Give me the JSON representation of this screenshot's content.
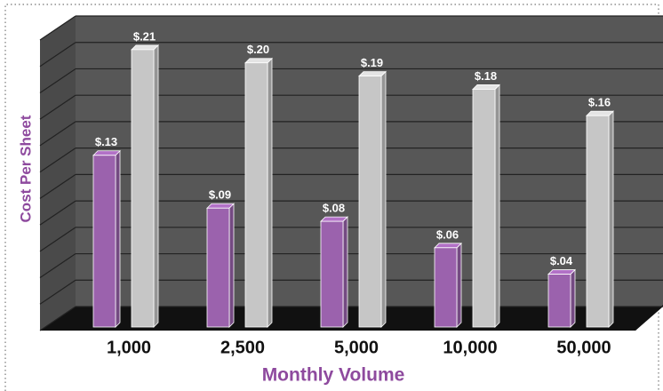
{
  "chart_data": {
    "type": "bar3d",
    "y_label": "Cost Per Sheet",
    "x_label": "Monthly Volume",
    "categories": [
      "1,000",
      "2,500",
      "5,000",
      "10,000",
      "50,000"
    ],
    "series": [
      {
        "color": "#9b62ad",
        "values": [
          0.13,
          0.09,
          0.08,
          0.06,
          0.04
        ],
        "value_labels": [
          "$.13",
          "$.09",
          "$.08",
          "$.06",
          "$.04"
        ]
      },
      {
        "color": "#c6c6c6",
        "values": [
          0.21,
          0.2,
          0.19,
          0.18,
          0.16
        ],
        "value_labels": [
          "$.21",
          "$.20",
          "$.19",
          "$.18",
          "$.16"
        ]
      }
    ],
    "ylim": [
      0,
      0.22
    ],
    "yticks": [
      0,
      0.02,
      0.04,
      0.06,
      0.08,
      0.1,
      0.12,
      0.14,
      0.16,
      0.18,
      0.2,
      0.22
    ],
    "grid": true
  }
}
